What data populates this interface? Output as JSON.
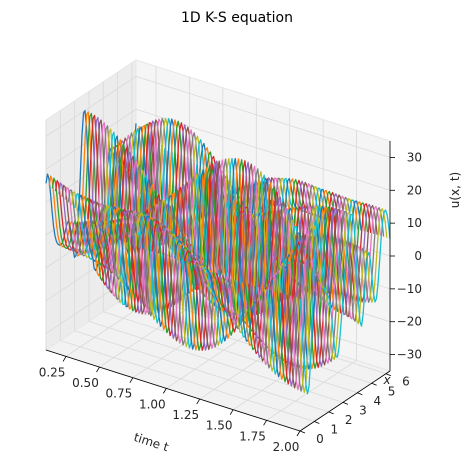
{
  "chart_data": {
    "type": "line",
    "projection": "3d",
    "title": "1D K-S equation",
    "xlabel": "time t",
    "ylabel": "x",
    "zlabel": "u(x, t)",
    "t_range": [
      0.1,
      2.0
    ],
    "x_range": [
      0,
      6.283
    ],
    "z_range": [
      -35,
      35
    ],
    "t_ticks": [
      "0.25",
      "0.50",
      "0.75",
      "1.00",
      "1.25",
      "1.50",
      "1.75",
      "2.00"
    ],
    "x_ticks": [
      "0",
      "1",
      "2",
      "3",
      "4",
      "5",
      "6"
    ],
    "z_ticks": [
      "30",
      "20",
      "10",
      "0",
      "−10",
      "−20",
      "−30"
    ],
    "grid": true,
    "panes": true,
    "series_count": 80,
    "colors": [
      "#1f77b4",
      "#ff7f0e",
      "#2ca02c",
      "#d62728",
      "#9467bd",
      "#8c564b",
      "#e377c2",
      "#7f7f7f",
      "#bcbd22",
      "#17becf"
    ]
  }
}
